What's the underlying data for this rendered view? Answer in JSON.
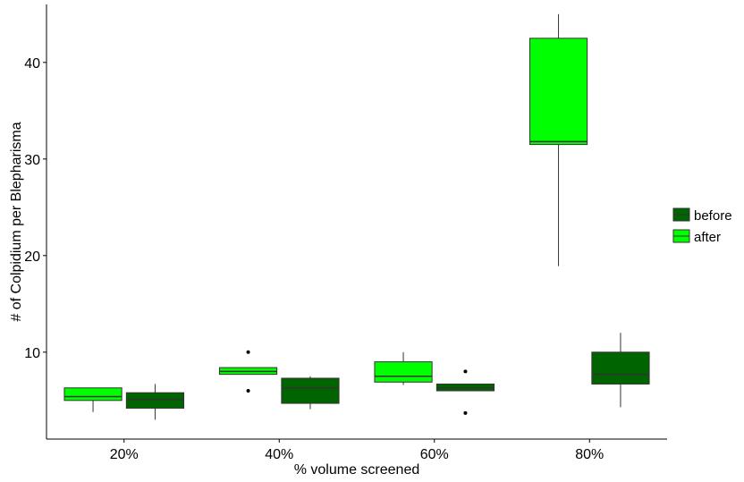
{
  "chart_data": {
    "type": "boxplot",
    "xlabel": "% volume screened",
    "ylabel": "# of Colpidium per Blepharisma",
    "categories": [
      "20%",
      "40%",
      "60%",
      "80%"
    ],
    "ylim": [
      1,
      46
    ],
    "yticks": [
      10,
      20,
      30,
      40
    ],
    "grid": false,
    "legend_position": "right",
    "series": [
      {
        "name": "after",
        "color": "#00ff00",
        "boxes": [
          {
            "category": "20%",
            "whisker_low": 3.8,
            "q1": 5.0,
            "median": 5.4,
            "q3": 6.3,
            "whisker_high": 6.3,
            "outliers": []
          },
          {
            "category": "40%",
            "whisker_low": 7.7,
            "q1": 7.7,
            "median": 8.0,
            "q3": 8.4,
            "whisker_high": 8.4,
            "outliers": [
              6.0,
              10.0
            ]
          },
          {
            "category": "60%",
            "whisker_low": 6.6,
            "q1": 6.9,
            "median": 7.5,
            "q3": 9.0,
            "whisker_high": 10.0,
            "outliers": []
          },
          {
            "category": "80%",
            "whisker_low": 18.9,
            "q1": 31.5,
            "median": 31.8,
            "q3": 42.5,
            "whisker_high": 45.0,
            "outliers": []
          }
        ]
      },
      {
        "name": "before",
        "color": "#006400",
        "boxes": [
          {
            "category": "20%",
            "whisker_low": 3.0,
            "q1": 4.2,
            "median": 5.1,
            "q3": 5.8,
            "whisker_high": 6.7,
            "outliers": []
          },
          {
            "category": "40%",
            "whisker_low": 4.1,
            "q1": 4.7,
            "median": 6.3,
            "q3": 7.3,
            "whisker_high": 7.5,
            "outliers": []
          },
          {
            "category": "60%",
            "whisker_low": 6.0,
            "q1": 6.0,
            "median": 6.3,
            "q3": 6.7,
            "whisker_high": 6.7,
            "outliers": [
              3.7,
              8.0
            ]
          },
          {
            "category": "80%",
            "whisker_low": 4.3,
            "q1": 6.7,
            "median": 7.7,
            "q3": 10.0,
            "whisker_high": 12.0,
            "outliers": []
          }
        ]
      }
    ],
    "legend_order": [
      "before",
      "after"
    ]
  }
}
